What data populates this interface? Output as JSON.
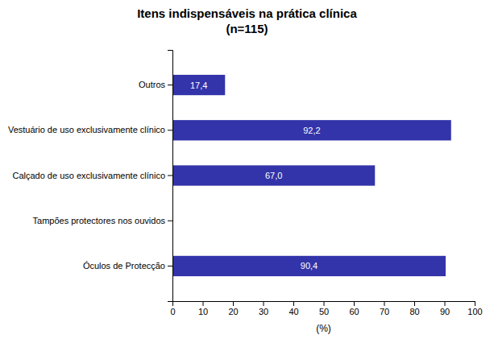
{
  "chart_data": {
    "type": "bar",
    "orientation": "horizontal",
    "title": "Itens indispensáveis na prática clínica",
    "subtitle": "(n=115)",
    "categories": [
      "Óculos de Protecção",
      "Tampões protectores nos ouvidos",
      "Calçado de uso exclusivamente clínico",
      "Vestuário de uso exclusivamente clínico",
      "Outros"
    ],
    "values": [
      90.4,
      0.0,
      67.0,
      92.2,
      17.4
    ],
    "value_labels": [
      "90,4",
      null,
      "67,0",
      "92,2",
      "17,4"
    ],
    "data_labels": true,
    "color": "#3333AA",
    "x_label": "(%)",
    "xlim": [
      0,
      100
    ],
    "xticks": [
      0,
      10,
      20,
      30,
      40,
      50,
      60,
      70,
      80,
      90,
      100
    ],
    "grid": false
  }
}
